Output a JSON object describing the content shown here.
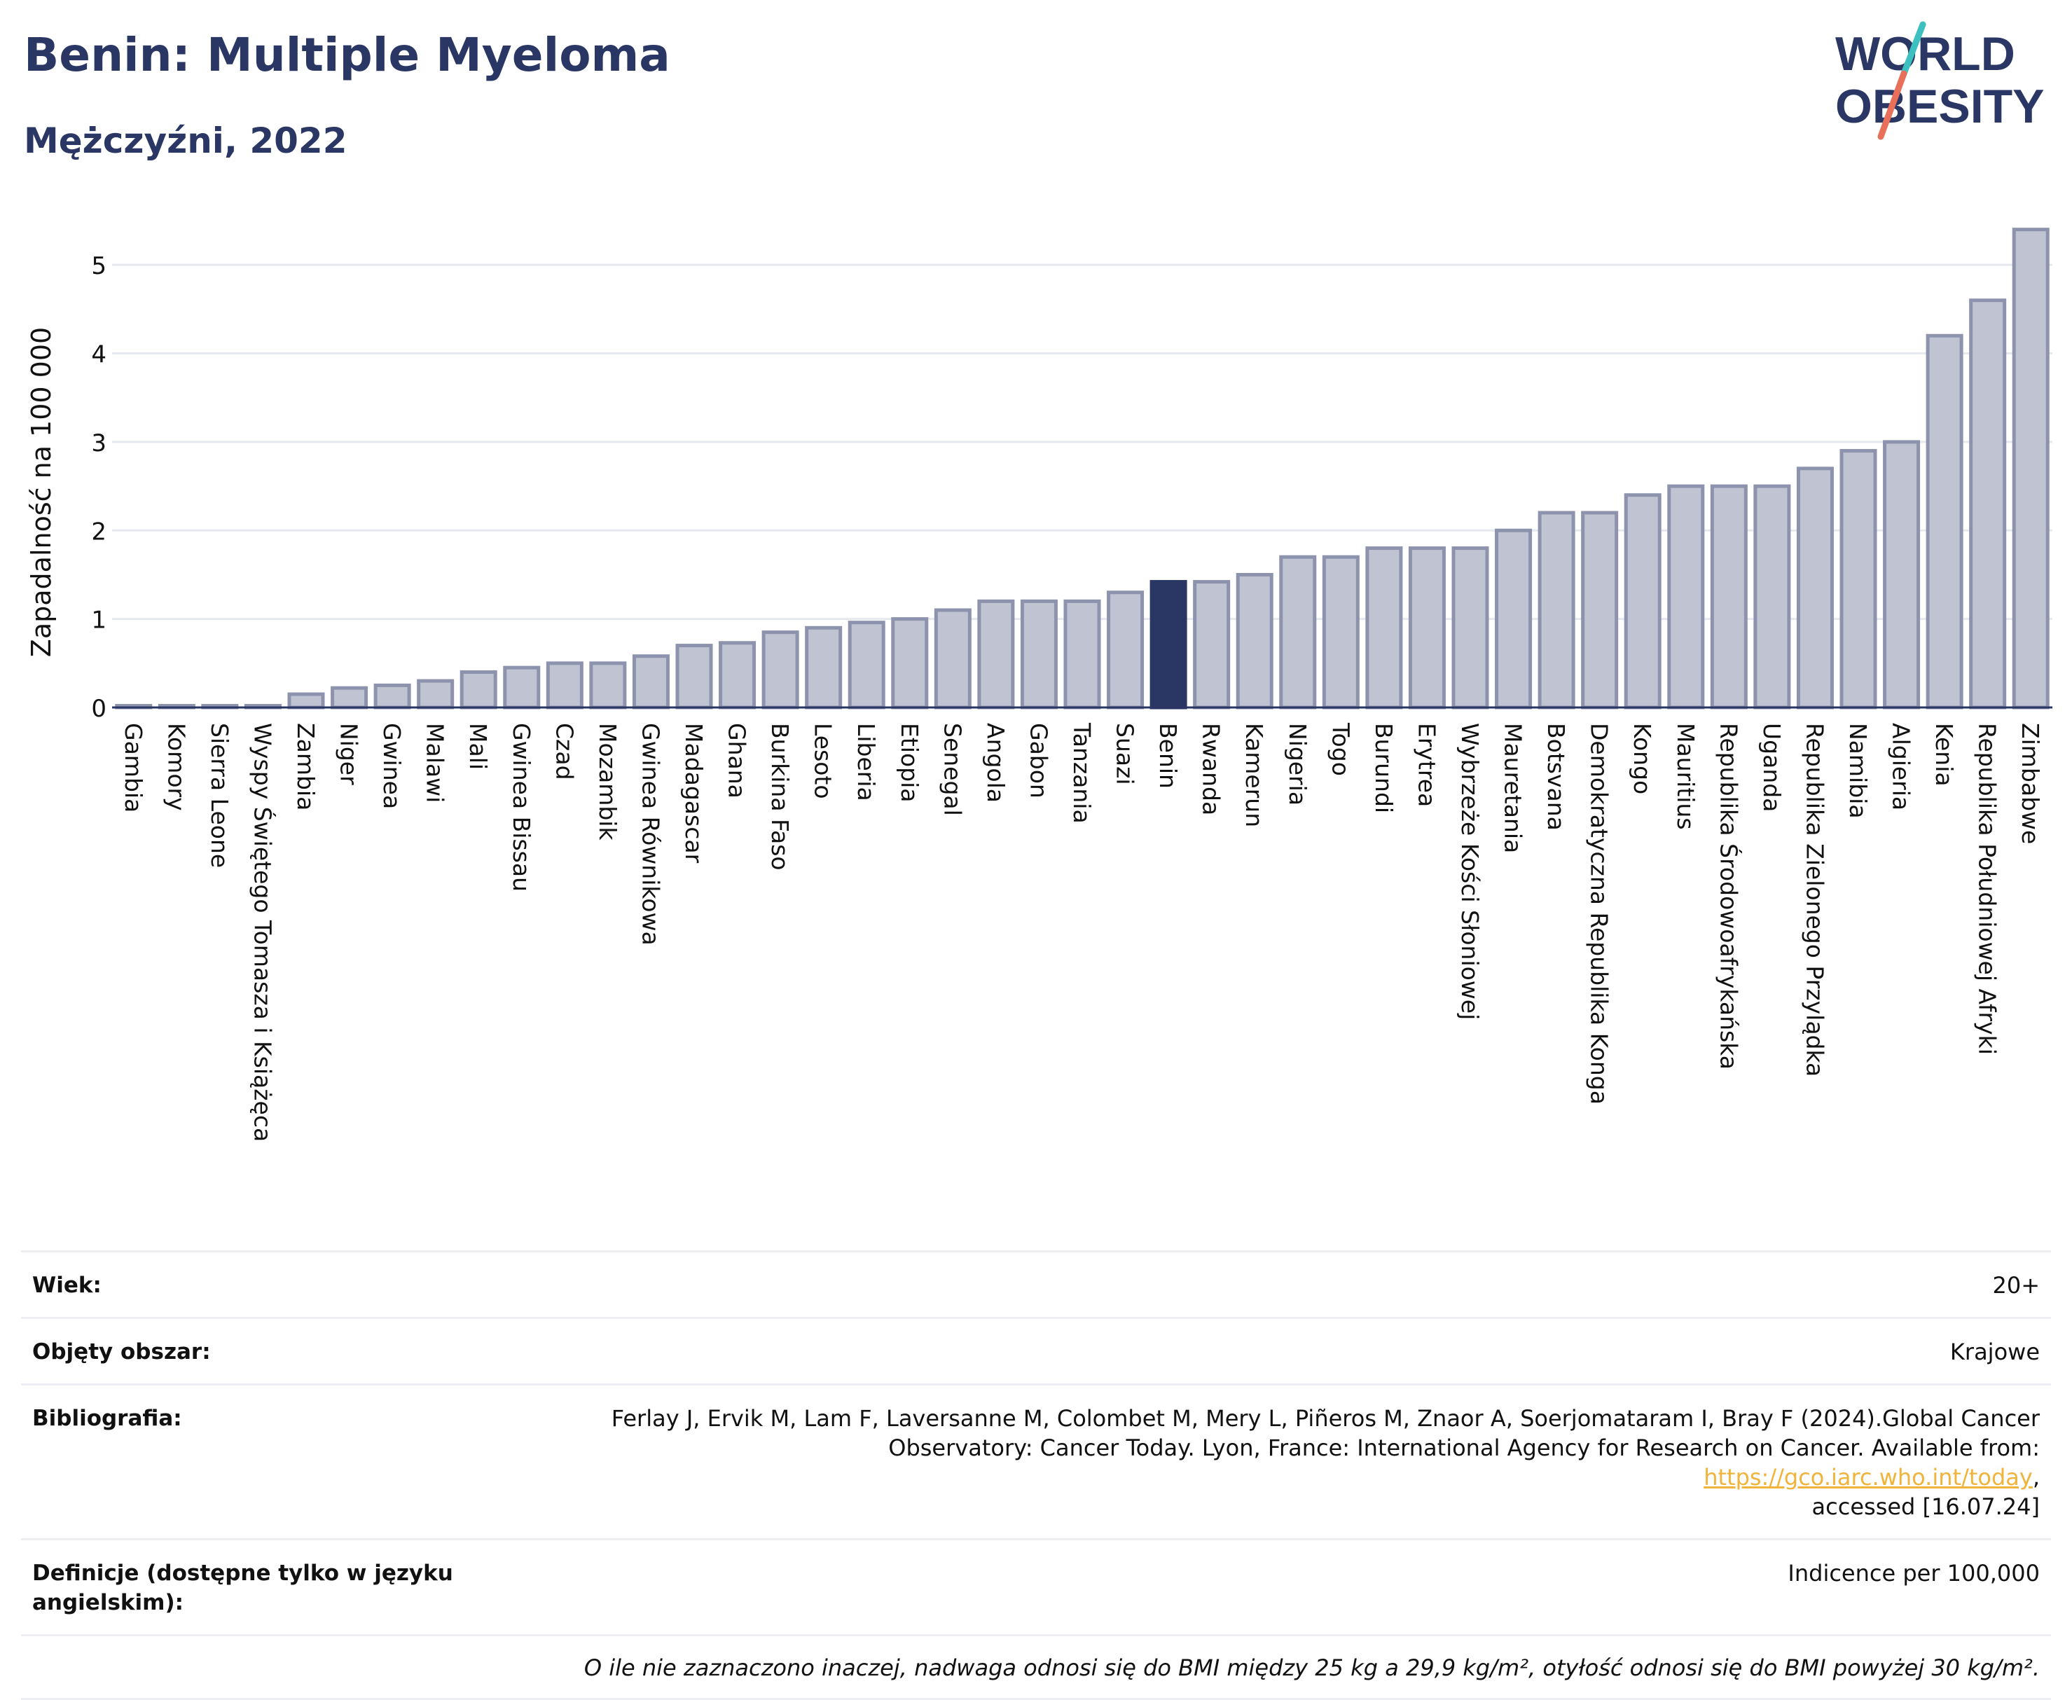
{
  "header": {
    "title": "Benin: Multiple Myeloma",
    "subtitle": "Mężczyźni, 2022"
  },
  "logo": {
    "line1": "WORLD",
    "line2": "OBESITY",
    "colors": {
      "text": "#2a3764",
      "slash_top": "#3cc0c0",
      "slash_bottom": "#e8705a"
    }
  },
  "chart_data": {
    "type": "bar",
    "ylabel": "Zapadalność na 100 000",
    "ylim": [
      0,
      5.5
    ],
    "yticks": [
      0,
      1,
      2,
      3,
      4,
      5
    ],
    "grid": true,
    "highlight": "Benin",
    "colors": {
      "bar": "#bfc3d2",
      "bar_edge": "#8d93ad",
      "highlight": "#2a3764"
    },
    "categories": [
      "Gambia",
      "Komory",
      "Sierra Leone",
      "Wyspy Świętego Tomasza i Książęca",
      "Zambia",
      "Niger",
      "Gwinea",
      "Malawi",
      "Mali",
      "Gwinea Bissau",
      "Czad",
      "Mozambik",
      "Gwinea Równikowa",
      "Madagascar",
      "Ghana",
      "Burkina Faso",
      "Lesoto",
      "Liberia",
      "Etiopia",
      "Senegal",
      "Angola",
      "Gabon",
      "Tanzania",
      "Suazi",
      "Benin",
      "Rwanda",
      "Kamerun",
      "Nigeria",
      "Togo",
      "Burundi",
      "Erytrea",
      "Wybrzeże Kości Słoniowej",
      "Mauretania",
      "Botsvana",
      "Demokratyczna Republika Konga",
      "Kongo",
      "Mauritius",
      "Republika Środowoafrykańska",
      "Uganda",
      "Republika Zielonego Przylądka",
      "Namibia",
      "Algieria",
      "Kenia",
      "Republika Południowej Afryki",
      "Zimbabwe"
    ],
    "values": [
      0.02,
      0.02,
      0.02,
      0.02,
      0.15,
      0.22,
      0.25,
      0.3,
      0.4,
      0.45,
      0.5,
      0.5,
      0.58,
      0.7,
      0.73,
      0.85,
      0.9,
      0.96,
      1.0,
      1.1,
      1.2,
      1.2,
      1.2,
      1.3,
      1.42,
      1.42,
      1.5,
      1.7,
      1.7,
      1.8,
      1.8,
      1.8,
      2.0,
      2.2,
      2.2,
      2.4,
      2.5,
      2.5,
      2.5,
      2.7,
      2.9,
      3.0,
      4.2,
      4.6,
      5.4
    ]
  },
  "info": {
    "age": {
      "label": "Wiek:",
      "value": "20+"
    },
    "area": {
      "label": "Objęty obszar:",
      "value": "Krajowe"
    },
    "bibliography": {
      "label": "Bibliografia:",
      "line1": "Ferlay J, Ervik M, Lam F, Laversanne M, Colombet M, Mery L, Piñeros M, Znaor A, Soerjomataram I, Bray F (2024).Global Cancer",
      "line2": "Observatory: Cancer Today. Lyon, France: International Agency for Research on Cancer. Available from: ",
      "link": "https://gco.iarc.who.int/today",
      "line2_end": ",",
      "line3": "accessed [16.07.24]"
    },
    "definitions": {
      "label": "Definicje (dostępne tylko w języku angielskim):",
      "value": "Indicence per 100,000"
    },
    "note": "O ile nie zaznaczono inaczej, nadwaga odnosi się do BMI między 25 kg a 29,9 kg/m², otyłość odnosi się do BMI powyżej 30 kg/m²."
  }
}
